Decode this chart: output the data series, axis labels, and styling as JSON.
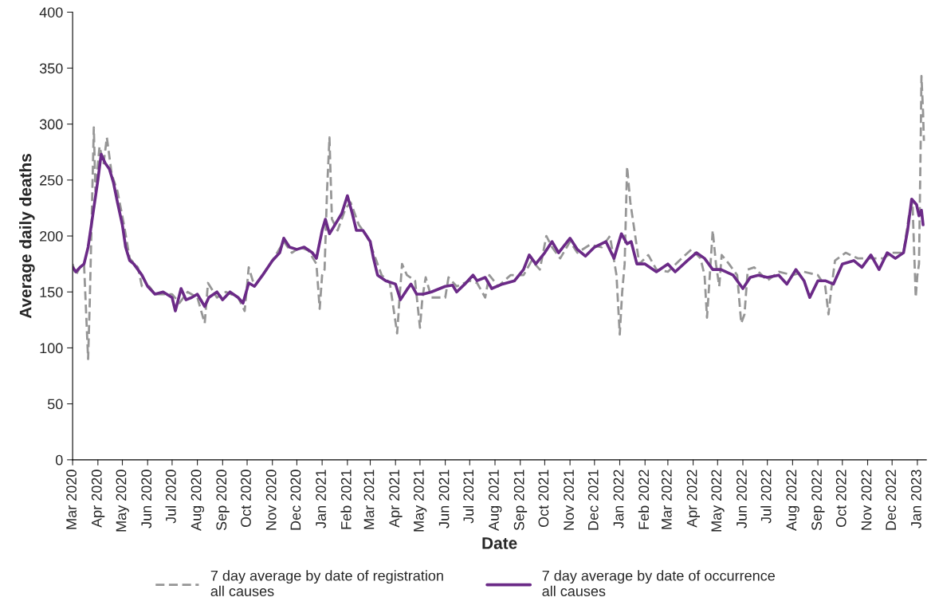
{
  "chart_data": {
    "type": "line",
    "xlabel": "Date",
    "ylabel": "Average daily deaths",
    "xlim": [
      "2020-03-01",
      "2023-01-12"
    ],
    "ylim": [
      0,
      400
    ],
    "yticks": [
      0,
      50,
      100,
      150,
      200,
      250,
      300,
      350,
      400
    ],
    "xticks": [
      {
        "value": "2020-03-01",
        "label": "Mar 2020"
      },
      {
        "value": "2020-04-01",
        "label": "Apr 2020"
      },
      {
        "value": "2020-05-01",
        "label": "May 2020"
      },
      {
        "value": "2020-06-01",
        "label": "Jun 2020"
      },
      {
        "value": "2020-07-01",
        "label": "Jul 2020"
      },
      {
        "value": "2020-08-01",
        "label": "Aug 2020"
      },
      {
        "value": "2020-09-01",
        "label": "Sep 2020"
      },
      {
        "value": "2020-10-01",
        "label": "Oct 2020"
      },
      {
        "value": "2020-11-01",
        "label": "Nov 2020"
      },
      {
        "value": "2020-12-01",
        "label": "Dec 2020"
      },
      {
        "value": "2021-01-01",
        "label": "Jan 2021"
      },
      {
        "value": "2021-02-01",
        "label": "Feb 2021"
      },
      {
        "value": "2021-03-01",
        "label": "Mar 2021"
      },
      {
        "value": "2021-04-01",
        "label": "Apr 2021"
      },
      {
        "value": "2021-05-01",
        "label": "May 2021"
      },
      {
        "value": "2021-06-01",
        "label": "Jun 2021"
      },
      {
        "value": "2021-07-01",
        "label": "Jul 2021"
      },
      {
        "value": "2021-08-01",
        "label": "Aug 2021"
      },
      {
        "value": "2021-09-01",
        "label": "Sep 2021"
      },
      {
        "value": "2021-10-01",
        "label": "Oct 2021"
      },
      {
        "value": "2021-11-01",
        "label": "Nov 2021"
      },
      {
        "value": "2021-12-01",
        "label": "Dec 2021"
      },
      {
        "value": "2022-01-01",
        "label": "Jan 2022"
      },
      {
        "value": "2022-02-01",
        "label": "Feb 2022"
      },
      {
        "value": "2022-03-01",
        "label": "Mar 2022"
      },
      {
        "value": "2022-04-01",
        "label": "Apr 2022"
      },
      {
        "value": "2022-05-01",
        "label": "May 2022"
      },
      {
        "value": "2022-06-01",
        "label": "Jun 2022"
      },
      {
        "value": "2022-07-01",
        "label": "Jul 2022"
      },
      {
        "value": "2022-08-01",
        "label": "Aug 2022"
      },
      {
        "value": "2022-09-01",
        "label": "Sep 2022"
      },
      {
        "value": "2022-10-01",
        "label": "Oct 2022"
      },
      {
        "value": "2022-11-01",
        "label": "Nov 2022"
      },
      {
        "value": "2022-12-01",
        "label": "Dec 2022"
      },
      {
        "value": "2023-01-01",
        "label": "Jan 2023"
      }
    ],
    "grid": false,
    "legend": "bottom",
    "series": [
      {
        "name": "7 day average by date of registration\nall causes",
        "color": "#969696",
        "line_style": "dashed",
        "x": [
          "2020-03-01",
          "2020-03-05",
          "2020-03-10",
          "2020-03-15",
          "2020-03-20",
          "2020-03-22",
          "2020-03-27",
          "2020-03-29",
          "2020-04-03",
          "2020-04-08",
          "2020-04-12",
          "2020-04-18",
          "2020-04-25",
          "2020-05-03",
          "2020-05-10",
          "2020-05-20",
          "2020-05-25",
          "2020-06-03",
          "2020-06-10",
          "2020-07-01",
          "2020-07-10",
          "2020-07-20",
          "2020-08-01",
          "2020-08-10",
          "2020-08-14",
          "2020-08-25",
          "2020-09-05",
          "2020-09-20",
          "2020-09-28",
          "2020-10-03",
          "2020-10-10",
          "2020-10-20",
          "2020-11-01",
          "2020-11-15",
          "2020-11-25",
          "2020-12-05",
          "2020-12-15",
          "2020-12-25",
          "2020-12-29",
          "2021-01-01",
          "2021-01-04",
          "2021-01-07",
          "2021-01-10",
          "2021-01-13",
          "2021-01-20",
          "2021-01-30",
          "2021-02-05",
          "2021-02-15",
          "2021-02-25",
          "2021-03-05",
          "2021-03-15",
          "2021-03-25",
          "2021-04-03",
          "2021-04-06",
          "2021-04-09",
          "2021-04-15",
          "2021-04-25",
          "2021-05-01",
          "2021-05-04",
          "2021-05-08",
          "2021-05-15",
          "2021-06-01",
          "2021-06-05",
          "2021-06-15",
          "2021-07-01",
          "2021-07-10",
          "2021-07-20",
          "2021-07-25",
          "2021-08-05",
          "2021-08-20",
          "2021-09-05",
          "2021-09-15",
          "2021-09-25",
          "2021-10-03",
          "2021-10-10",
          "2021-10-20",
          "2021-11-01",
          "2021-11-10",
          "2021-11-25",
          "2021-12-10",
          "2021-12-20",
          "2021-12-28",
          "2022-01-01",
          "2022-01-04",
          "2022-01-07",
          "2022-01-10",
          "2022-01-14",
          "2022-01-20",
          "2022-01-25",
          "2022-02-05",
          "2022-02-15",
          "2022-03-01",
          "2022-03-15",
          "2022-03-30",
          "2022-04-10",
          "2022-04-15",
          "2022-04-18",
          "2022-04-21",
          "2022-04-25",
          "2022-04-29",
          "2022-05-03",
          "2022-05-06",
          "2022-05-15",
          "2022-05-25",
          "2022-05-30",
          "2022-06-03",
          "2022-06-07",
          "2022-06-15",
          "2022-07-01",
          "2022-07-15",
          "2022-08-01",
          "2022-08-15",
          "2022-09-01",
          "2022-09-10",
          "2022-09-14",
          "2022-09-17",
          "2022-09-22",
          "2022-10-05",
          "2022-10-20",
          "2022-11-01",
          "2022-11-20",
          "2022-12-01",
          "2022-12-15",
          "2022-12-22",
          "2022-12-26",
          "2022-12-30",
          "2023-01-01",
          "2023-01-03",
          "2023-01-05",
          "2023-01-06",
          "2023-01-08",
          "2023-01-09"
        ],
        "values": [
          175,
          165,
          172,
          175,
          90,
          140,
          297,
          240,
          280,
          265,
          288,
          255,
          240,
          210,
          180,
          172,
          155,
          155,
          148,
          148,
          140,
          150,
          145,
          122,
          158,
          145,
          150,
          145,
          133,
          172,
          155,
          165,
          178,
          195,
          185,
          190,
          187,
          175,
          135,
          165,
          170,
          240,
          288,
          215,
          205,
          225,
          230,
          210,
          200,
          185,
          165,
          158,
          113,
          145,
          175,
          165,
          160,
          118,
          145,
          163,
          145,
          145,
          163,
          155,
          160,
          158,
          145,
          165,
          155,
          165,
          165,
          178,
          170,
          200,
          190,
          180,
          195,
          185,
          192,
          190,
          200,
          165,
          112,
          150,
          175,
          262,
          230,
          200,
          175,
          183,
          170,
          168,
          178,
          188,
          180,
          165,
          127,
          160,
          205,
          175,
          155,
          183,
          175,
          165,
          122,
          130,
          170,
          172,
          160,
          168,
          165,
          168,
          165,
          155,
          130,
          150,
          178,
          185,
          180,
          180,
          180,
          185,
          185,
          220,
          230,
          145,
          165,
          175,
          280,
          343,
          310,
          285
        ]
      },
      {
        "name": "7 day average by date of occurrence\nall causes",
        "color": "#6b2a87",
        "line_style": "solid",
        "x": [
          "2020-03-01",
          "2020-03-05",
          "2020-03-10",
          "2020-03-15",
          "2020-03-20",
          "2020-03-25",
          "2020-04-01",
          "2020-04-05",
          "2020-04-10",
          "2020-04-15",
          "2020-04-20",
          "2020-04-25",
          "2020-05-01",
          "2020-05-05",
          "2020-05-10",
          "2020-05-15",
          "2020-05-20",
          "2020-05-25",
          "2020-06-01",
          "2020-06-10",
          "2020-06-20",
          "2020-07-01",
          "2020-07-05",
          "2020-07-12",
          "2020-07-18",
          "2020-07-25",
          "2020-08-01",
          "2020-08-10",
          "2020-08-15",
          "2020-08-25",
          "2020-09-01",
          "2020-09-10",
          "2020-09-20",
          "2020-09-26",
          "2020-10-03",
          "2020-10-10",
          "2020-10-20",
          "2020-11-01",
          "2020-11-10",
          "2020-11-15",
          "2020-11-22",
          "2020-12-01",
          "2020-12-10",
          "2020-12-20",
          "2020-12-25",
          "2021-01-01",
          "2021-01-05",
          "2021-01-10",
          "2021-01-15",
          "2021-01-25",
          "2021-02-01",
          "2021-02-07",
          "2021-02-12",
          "2021-02-20",
          "2021-03-01",
          "2021-03-05",
          "2021-03-10",
          "2021-03-20",
          "2021-04-01",
          "2021-04-07",
          "2021-04-15",
          "2021-04-20",
          "2021-04-27",
          "2021-05-05",
          "2021-05-15",
          "2021-06-01",
          "2021-06-10",
          "2021-06-15",
          "2021-06-25",
          "2021-07-05",
          "2021-07-10",
          "2021-07-20",
          "2021-07-28",
          "2021-08-10",
          "2021-08-25",
          "2021-09-05",
          "2021-09-12",
          "2021-09-20",
          "2021-10-01",
          "2021-10-10",
          "2021-10-18",
          "2021-11-01",
          "2021-11-10",
          "2021-11-20",
          "2021-12-01",
          "2021-12-15",
          "2021-12-25",
          "2022-01-03",
          "2022-01-10",
          "2022-01-15",
          "2022-01-22",
          "2022-02-01",
          "2022-02-15",
          "2022-03-01",
          "2022-03-10",
          "2022-03-25",
          "2022-04-05",
          "2022-04-15",
          "2022-04-25",
          "2022-05-05",
          "2022-05-20",
          "2022-06-01",
          "2022-06-10",
          "2022-06-20",
          "2022-07-01",
          "2022-07-15",
          "2022-07-25",
          "2022-08-05",
          "2022-08-15",
          "2022-08-22",
          "2022-09-01",
          "2022-09-10",
          "2022-09-20",
          "2022-10-01",
          "2022-10-15",
          "2022-10-25",
          "2022-11-05",
          "2022-11-15",
          "2022-11-25",
          "2022-12-05",
          "2022-12-15",
          "2022-12-20",
          "2022-12-25",
          "2022-12-31",
          "2023-01-03",
          "2023-01-06",
          "2023-01-08"
        ],
        "values": [
          172,
          168,
          172,
          175,
          190,
          215,
          250,
          273,
          265,
          260,
          248,
          230,
          210,
          190,
          178,
          175,
          170,
          165,
          155,
          148,
          150,
          145,
          133,
          153,
          143,
          145,
          148,
          137,
          145,
          150,
          143,
          150,
          145,
          140,
          158,
          155,
          165,
          178,
          185,
          198,
          190,
          188,
          190,
          185,
          180,
          205,
          215,
          202,
          208,
          220,
          236,
          220,
          205,
          205,
          195,
          180,
          165,
          160,
          157,
          143,
          152,
          157,
          148,
          148,
          150,
          155,
          156,
          150,
          157,
          165,
          160,
          163,
          153,
          157,
          160,
          170,
          183,
          175,
          185,
          195,
          185,
          198,
          188,
          182,
          190,
          195,
          180,
          202,
          193,
          195,
          175,
          175,
          168,
          175,
          168,
          178,
          185,
          180,
          170,
          170,
          165,
          153,
          163,
          165,
          163,
          165,
          157,
          170,
          160,
          145,
          160,
          160,
          157,
          175,
          178,
          172,
          183,
          170,
          185,
          180,
          185,
          205,
          233,
          228,
          218,
          223,
          210
        ]
      }
    ]
  }
}
